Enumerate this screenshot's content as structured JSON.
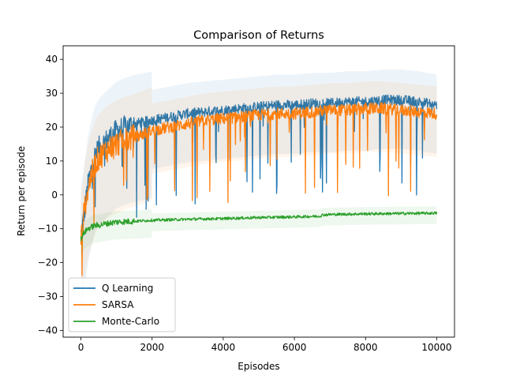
{
  "chart_data": {
    "type": "line",
    "title": "Comparison of Returns",
    "xlabel": "Episodes",
    "ylabel": "Return per episode",
    "xlim": [
      -500,
      10500
    ],
    "ylim": [
      -42,
      44
    ],
    "xticks": [
      0,
      2000,
      4000,
      6000,
      8000,
      10000
    ],
    "yticks": [
      -40,
      -30,
      -20,
      -10,
      0,
      10,
      20,
      30,
      40
    ],
    "grid": false,
    "legend_position": "lower-left",
    "series": [
      {
        "name": "Q Learning",
        "color": "#1f77b4",
        "x": [
          0,
          100,
          200,
          300,
          400,
          500,
          600,
          800,
          1000,
          1200,
          1500,
          2000,
          2500,
          3000,
          3500,
          4000,
          4500,
          5000,
          5500,
          6000,
          6500,
          7000,
          7500,
          8000,
          8500,
          9000,
          9500,
          10000
        ],
        "values": [
          -12,
          -5,
          3,
          8,
          12,
          14,
          15,
          17,
          19,
          20,
          21,
          22,
          23,
          24,
          24.5,
          25,
          25.5,
          26,
          26.5,
          26.5,
          27,
          27,
          27.5,
          27.5,
          28,
          28,
          27.5,
          26.5
        ]
      },
      {
        "name": "SARSA",
        "color": "#ff7f0e",
        "x": [
          0,
          100,
          200,
          300,
          400,
          500,
          600,
          800,
          1000,
          1200,
          1500,
          2000,
          2500,
          3000,
          3500,
          4000,
          4500,
          5000,
          5500,
          6000,
          6500,
          7000,
          7500,
          8000,
          8500,
          9000,
          9500,
          10000
        ],
        "values": [
          -14,
          -4,
          2,
          6,
          9,
          11,
          12,
          14,
          15,
          16,
          17,
          19,
          20,
          21,
          22,
          22.5,
          23,
          23.5,
          24,
          24,
          24.5,
          25,
          25,
          25.5,
          25.5,
          25,
          24.5,
          24
        ]
      },
      {
        "name": "Monte-Carlo",
        "color": "#2ca02c",
        "x": [
          0,
          100,
          200,
          300,
          400,
          500,
          700,
          1000,
          1500,
          2000,
          3000,
          4000,
          5000,
          6000,
          6700,
          6800,
          7000,
          8000,
          9000,
          10000
        ],
        "values": [
          -13,
          -11,
          -10,
          -9.5,
          -9,
          -9,
          -8.5,
          -8,
          -7.8,
          -7.5,
          -7.2,
          -7,
          -6.7,
          -6.5,
          -6.3,
          -5.9,
          -5.8,
          -5.6,
          -5.5,
          -5.4
        ]
      }
    ]
  }
}
